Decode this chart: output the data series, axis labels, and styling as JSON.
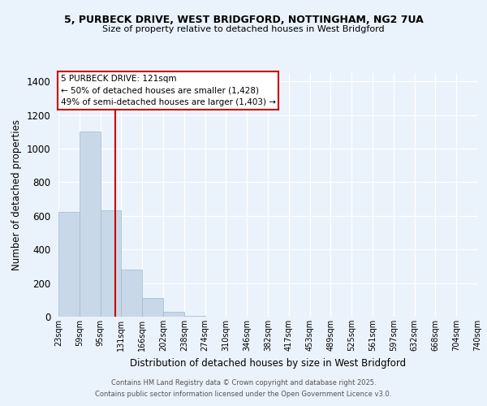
{
  "title_line1": "5, PURBECK DRIVE, WEST BRIDGFORD, NOTTINGHAM, NG2 7UA",
  "title_line2": "Size of property relative to detached houses in West Bridgford",
  "xlabel": "Distribution of detached houses by size in West Bridgford",
  "ylabel": "Number of detached properties",
  "bin_labels": [
    "23sqm",
    "59sqm",
    "95sqm",
    "131sqm",
    "166sqm",
    "202sqm",
    "238sqm",
    "274sqm",
    "310sqm",
    "346sqm",
    "382sqm",
    "417sqm",
    "453sqm",
    "489sqm",
    "525sqm",
    "561sqm",
    "597sqm",
    "632sqm",
    "668sqm",
    "704sqm",
    "740sqm"
  ],
  "bar_values": [
    625,
    1100,
    635,
    280,
    110,
    30,
    5,
    0,
    0,
    0,
    0,
    0,
    0,
    0,
    0,
    0,
    0,
    0,
    0,
    0
  ],
  "bar_color": "#c8d8e8",
  "bar_edge_color": "#a0b8cc",
  "background_color": "#eaf2fb",
  "grid_color": "#ffffff",
  "annotation_box_color": "#ffffff",
  "annotation_box_edge": "#cc0000",
  "property_line_color": "#cc0000",
  "annotation_title": "5 PURBECK DRIVE: 121sqm",
  "annotation_line1": "← 50% of detached houses are smaller (1,428)",
  "annotation_line2": "49% of semi-detached houses are larger (1,403) →",
  "ylim": [
    0,
    1450
  ],
  "yticks": [
    0,
    200,
    400,
    600,
    800,
    1000,
    1200,
    1400
  ],
  "footnote1": "Contains HM Land Registry data © Crown copyright and database right 2025.",
  "footnote2": "Contains public sector information licensed under the Open Government Licence v3.0."
}
